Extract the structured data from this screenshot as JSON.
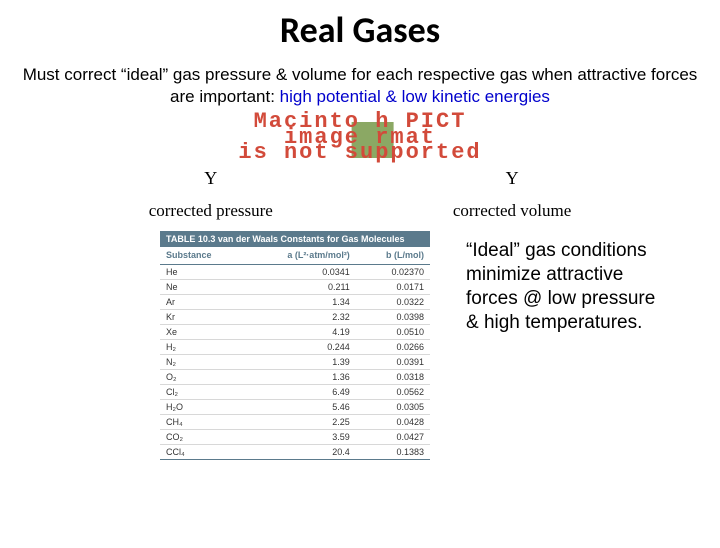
{
  "title": "Real Gases",
  "subtitle_part1": "Must correct “ideal” gas pressure & volume for each respective gas when attractive forces are important:  ",
  "subtitle_blue": "high potential & low kinetic energies",
  "pict": {
    "line1": "Macinto  h PICT",
    "line2": "image   rmat",
    "line3": "is not supported"
  },
  "labels": {
    "symbol_left": "Υ",
    "symbol_right": "Υ",
    "left": "corrected pressure",
    "right": "corrected volume"
  },
  "table": {
    "caption": "TABLE 10.3   van der Waals Constants for Gas Molecules",
    "columns": [
      "Substance",
      "a (L²·atm/mol²)",
      "b (L/mol)"
    ],
    "header_color": "#5b7a8c",
    "rows": [
      [
        "He",
        "0.0341",
        "0.02370"
      ],
      [
        "Ne",
        "0.211",
        "0.0171"
      ],
      [
        "Ar",
        "1.34",
        "0.0322"
      ],
      [
        "Kr",
        "2.32",
        "0.0398"
      ],
      [
        "Xe",
        "4.19",
        "0.0510"
      ],
      [
        "H₂",
        "0.244",
        "0.0266"
      ],
      [
        "N₂",
        "1.39",
        "0.0391"
      ],
      [
        "O₂",
        "1.36",
        "0.0318"
      ],
      [
        "Cl₂",
        "6.49",
        "0.0562"
      ],
      [
        "H₂O",
        "5.46",
        "0.0305"
      ],
      [
        "CH₄",
        "2.25",
        "0.0428"
      ],
      [
        "CO₂",
        "3.59",
        "0.0427"
      ],
      [
        "CCl₄",
        "20.4",
        "0.1383"
      ]
    ]
  },
  "side_text": "“Ideal” gas conditions minimize attractive forces @ low pressure & high temperatures."
}
